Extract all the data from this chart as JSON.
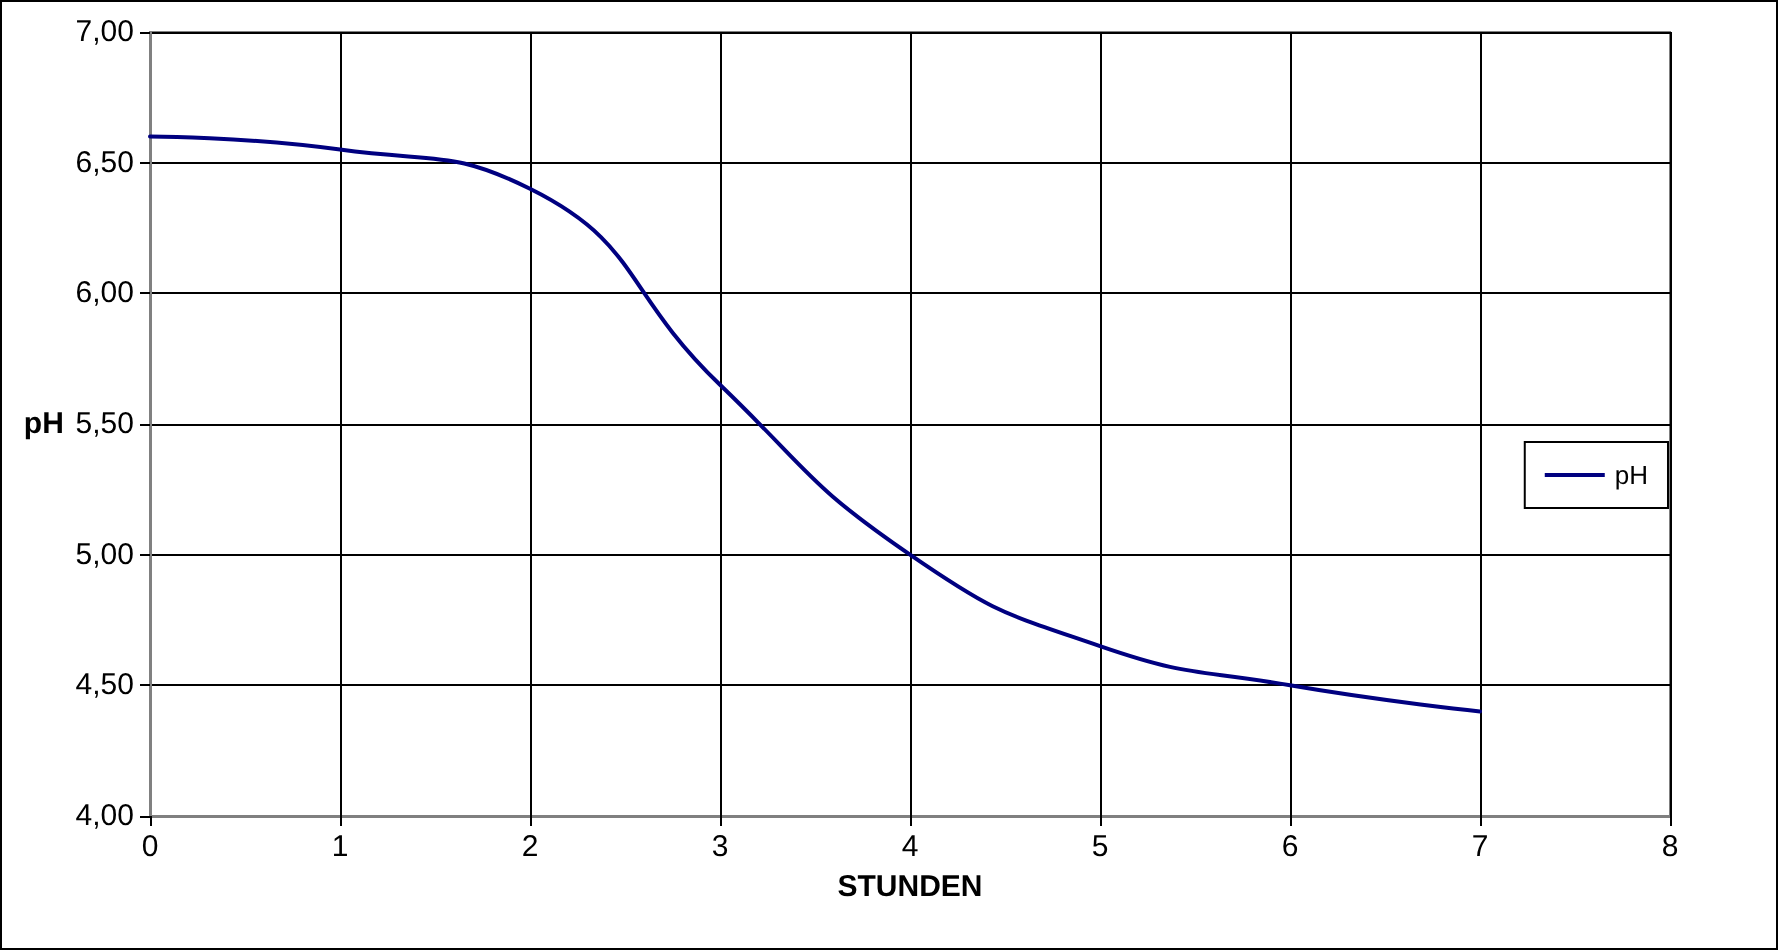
{
  "chart_data": {
    "type": "line",
    "xlabel": "STUNDEN",
    "ylabel": "pH",
    "x": [
      0,
      1,
      2,
      3,
      4,
      5,
      6,
      7
    ],
    "series": [
      {
        "name": "pH",
        "color": "#000080",
        "values": [
          6.6,
          6.55,
          6.4,
          5.65,
          5.0,
          4.65,
          4.5,
          4.4
        ]
      }
    ],
    "xlim": [
      0,
      8
    ],
    "xticks": [
      0,
      1,
      2,
      3,
      4,
      5,
      6,
      7,
      8
    ],
    "ylim": [
      4,
      7
    ],
    "yticks": [
      {
        "value": 4,
        "label": "4,00"
      },
      {
        "value": 4.5,
        "label": "4,50"
      },
      {
        "value": 5,
        "label": "5,00"
      },
      {
        "value": 5.5,
        "label": "5,50"
      },
      {
        "value": 6,
        "label": "6,00"
      },
      {
        "value": 6.5,
        "label": "6,50"
      },
      {
        "value": 7,
        "label": "7,00"
      }
    ],
    "grid": true,
    "legend": "right",
    "marker": "none",
    "line_style": "solid"
  }
}
